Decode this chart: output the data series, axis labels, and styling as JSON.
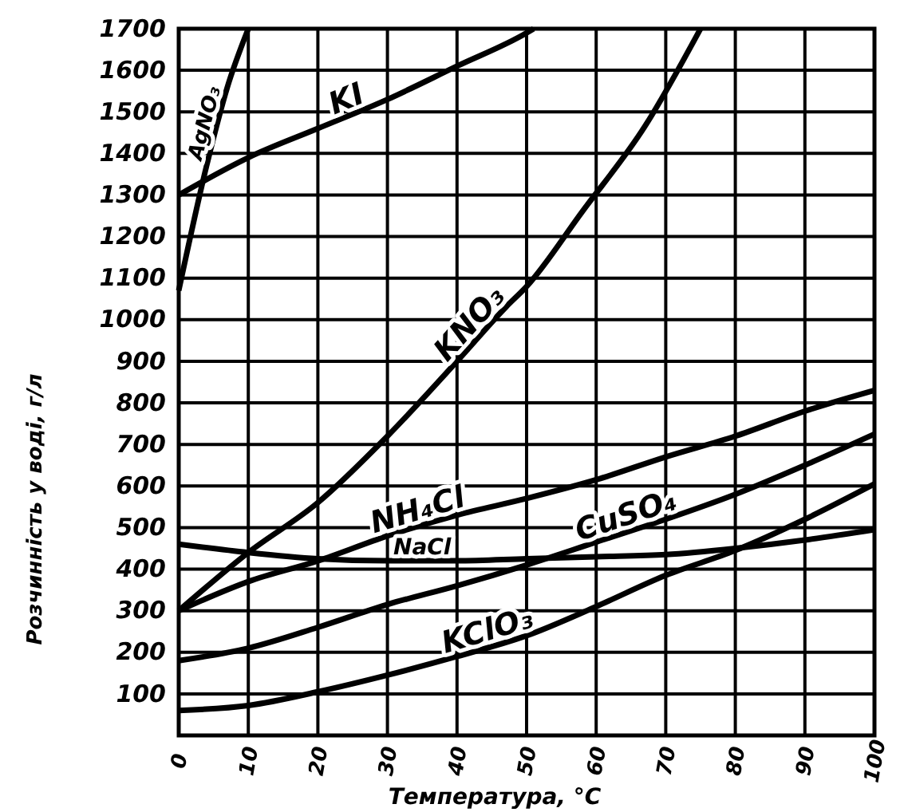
{
  "chart_data": {
    "type": "line",
    "xlabel": "Температура, °C",
    "ylabel": "Розчинність у воді, г/л",
    "xlim": [
      0,
      100
    ],
    "ylim": [
      0,
      1700
    ],
    "xticks": [
      0,
      10,
      20,
      30,
      40,
      50,
      60,
      70,
      80,
      90,
      100
    ],
    "yticks": [
      100,
      200,
      300,
      400,
      500,
      600,
      700,
      800,
      900,
      1000,
      1100,
      1200,
      1300,
      1400,
      1500,
      1600,
      1700
    ],
    "grid": true,
    "marker": "none",
    "line_style": "solid",
    "series": [
      {
        "name": "AgNO₃",
        "color": "#000000",
        "x": [
          0,
          4,
          7,
          10
        ],
        "values": [
          1070,
          1370,
          1560,
          1700
        ]
      },
      {
        "name": "KI",
        "color": "#000000",
        "x": [
          0,
          10,
          20,
          30,
          40,
          50,
          51
        ],
        "values": [
          1300,
          1390,
          1460,
          1530,
          1610,
          1690,
          1700
        ]
      },
      {
        "name": "KNO₃",
        "color": "#000000",
        "x": [
          0,
          10,
          20,
          30,
          40,
          47,
          50,
          58,
          67,
          75
        ],
        "values": [
          300,
          440,
          560,
          720,
          900,
          1030,
          1080,
          1260,
          1465,
          1700
        ]
      },
      {
        "name": "NH₄Cl",
        "color": "#000000",
        "x": [
          0,
          10,
          20,
          30,
          40,
          50,
          60,
          70,
          80,
          90,
          100
        ],
        "values": [
          300,
          370,
          420,
          480,
          530,
          570,
          615,
          670,
          720,
          780,
          830
        ]
      },
      {
        "name": "CuSO₄",
        "color": "#000000",
        "x": [
          0,
          10,
          20,
          30,
          40,
          50,
          60,
          70,
          80,
          90,
          100
        ],
        "values": [
          180,
          210,
          260,
          315,
          360,
          410,
          465,
          520,
          580,
          650,
          725
        ]
      },
      {
        "name": "NaCl",
        "color": "#000000",
        "x": [
          0,
          10,
          20,
          30,
          40,
          50,
          60,
          70,
          80,
          90,
          100
        ],
        "values": [
          460,
          440,
          425,
          420,
          420,
          425,
          430,
          435,
          450,
          470,
          495
        ]
      },
      {
        "name": "KClO₃",
        "color": "#000000",
        "x": [
          0,
          10,
          20,
          30,
          40,
          50,
          60,
          70,
          80,
          90,
          100
        ],
        "values": [
          60,
          72,
          105,
          145,
          190,
          240,
          310,
          385,
          445,
          520,
          605
        ]
      }
    ]
  }
}
